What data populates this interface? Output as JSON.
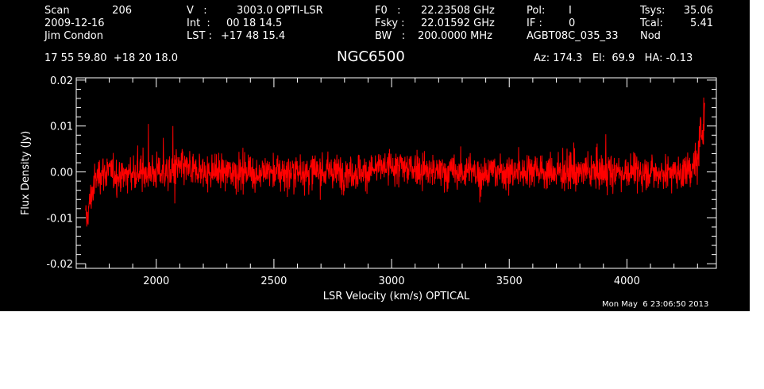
{
  "header": {
    "row1": {
      "scan_label": "Scan",
      "scan_value": "206",
      "v_label": "V   :",
      "v_value": "3003.0 OPTI-LSR",
      "f0_label": "F0   :",
      "f0_value": "22.23508 GHz",
      "pol_label": "Pol:",
      "pol_value": "I",
      "tsys_label": "Tsys:",
      "tsys_value": "35.06"
    },
    "row2": {
      "date": "2009-12-16",
      "int_label": "Int  :",
      "int_value": "00 18 14.5",
      "fsky_label": "Fsky :",
      "fsky_value": "22.01592 GHz",
      "if_label": "IF :",
      "if_value": "0",
      "tcal_label": "Tcal:",
      "tcal_value": "5.41"
    },
    "row3": {
      "observer": "Jim Condon",
      "lst_label": "LST :",
      "lst_value": "+17 48 15.4",
      "bw_label": "BW   :",
      "bw_value": "200.0000 MHz",
      "project": "AGBT08C_035_33",
      "mode": "Nod"
    },
    "coords": "17 55 59.80  +18 20 18.0",
    "source": "NGC6500",
    "pointing": "Az: 174.3   El:  69.9   HA: -0.13"
  },
  "footer": {
    "timestamp": "Mon May  6 23:06:50 2013"
  },
  "colors": {
    "background": "#000000",
    "trace": "#ff0000",
    "axes": "#ffffff"
  },
  "chart_data": {
    "type": "line",
    "xlabel": "LSR Velocity (km/s) OPTICAL",
    "ylabel": "Flux Density (Jy)",
    "xlim": [
      1660,
      4380
    ],
    "ylim": [
      -0.021,
      0.0205
    ],
    "x_ticks": [
      2000,
      2500,
      3000,
      3500,
      4000
    ],
    "x_tick_labels": [
      "2000",
      "2500",
      "3000",
      "3500",
      "4000"
    ],
    "y_ticks": [
      -0.02,
      -0.01,
      0.0,
      0.01,
      0.02
    ],
    "y_tick_labels": [
      "-0.02",
      "-0.01",
      "0.00",
      "0.01",
      "0.02"
    ],
    "grid": false,
    "series": [
      {
        "x": [
          1700,
          1710,
          1720,
          1730,
          1740,
          1760,
          1800,
          1850,
          1900,
          1950,
          2000,
          2050,
          2100,
          2150,
          2200,
          2250,
          2300,
          2350,
          2400,
          2450,
          2500,
          2550,
          2600,
          2650,
          2700,
          2750,
          2800,
          2850,
          2900,
          2950,
          3000,
          3050,
          3100,
          3150,
          3200,
          3250,
          3300,
          3350,
          3400,
          3450,
          3500,
          3550,
          3600,
          3650,
          3700,
          3750,
          3800,
          3850,
          3900,
          3950,
          4000,
          4050,
          4100,
          4150,
          4200,
          4250,
          4280,
          4300,
          4310,
          4320,
          4330
        ],
        "y": [
          -0.011,
          -0.009,
          -0.006,
          -0.004,
          -0.002,
          0.0,
          0.0,
          -0.001,
          0.0,
          0.0,
          0.0,
          0.0,
          0.001,
          0.0,
          0.0,
          0.0,
          0.0,
          0.0,
          0.0,
          0.0,
          0.0,
          0.0,
          0.0,
          0.0,
          0.0,
          0.0,
          0.0,
          0.0,
          0.0,
          0.001,
          0.001,
          0.001,
          0.001,
          0.0,
          0.0,
          0.0,
          0.0,
          0.0,
          0.0,
          0.0,
          0.0,
          0.0,
          0.001,
          0.0,
          0.0,
          0.0,
          0.0,
          0.0,
          0.0,
          0.0,
          0.0,
          0.0,
          0.0,
          0.0,
          0.0,
          0.0,
          0.001,
          0.003,
          0.006,
          0.01,
          0.014
        ],
        "noise_rms": 0.0035
      }
    ]
  }
}
